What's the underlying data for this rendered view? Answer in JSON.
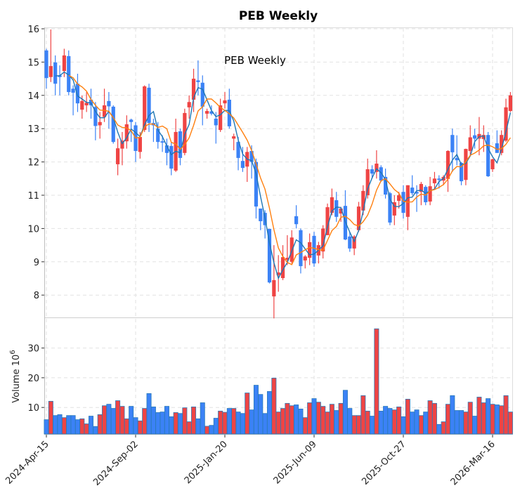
{
  "chart_data": {
    "type": "candlestick",
    "title": "PEB  Weekly",
    "inner_title": "PEB  Weekly",
    "price_axis": {
      "ylim": [
        7.4,
        16.05
      ],
      "ticks": [
        8,
        9,
        10,
        11,
        12,
        13,
        14,
        15,
        16
      ]
    },
    "volume_axis": {
      "ylabel": "Volume",
      "ylabel_unit": "10",
      "ylabel_exp": "6",
      "ylim": [
        1.2,
        38
      ],
      "ticks": [
        10,
        20,
        30
      ]
    },
    "x_ticks": [
      {
        "index": 0,
        "label": "2024-Apr-15"
      },
      {
        "index": 20,
        "label": "2024-Sep-02"
      },
      {
        "index": 40,
        "label": "2025-Jan-20"
      },
      {
        "index": 60,
        "label": "2025-Jun-09"
      },
      {
        "index": 80,
        "label": "2025-Oct-27"
      },
      {
        "index": 100,
        "label": "2026-Mar-16"
      }
    ],
    "grid": true,
    "colors": {
      "up": "#ef4444",
      "down": "#3b82f6",
      "ma_short": "#1f77b4",
      "ma_long": "#ff7f0e",
      "bar_edge": "#2b7bb9"
    },
    "ma_periods": [
      3,
      6
    ],
    "ohlc": [
      [
        15.35,
        15.4,
        14.2,
        14.52
      ],
      [
        14.55,
        15.98,
        14.4,
        14.88
      ],
      [
        14.99,
        15.2,
        14.0,
        14.35
      ],
      [
        14.6,
        14.9,
        14.0,
        14.55
      ],
      [
        14.73,
        15.4,
        14.55,
        15.2
      ],
      [
        15.18,
        15.35,
        14.0,
        14.1
      ],
      [
        14.2,
        14.3,
        13.4,
        14.08
      ],
      [
        14.35,
        14.65,
        13.5,
        13.76
      ],
      [
        13.57,
        14.0,
        13.3,
        13.83
      ],
      [
        13.7,
        14.1,
        13.5,
        13.78
      ],
      [
        13.87,
        14.2,
        13.3,
        13.7
      ],
      [
        13.65,
        13.8,
        12.65,
        13.08
      ],
      [
        13.1,
        13.5,
        12.7,
        13.2
      ],
      [
        13.35,
        14.2,
        13.2,
        13.7
      ],
      [
        13.83,
        14.1,
        13.0,
        13.67
      ],
      [
        13.66,
        13.7,
        12.55,
        12.6
      ],
      [
        11.93,
        12.7,
        11.6,
        12.41
      ],
      [
        12.4,
        12.9,
        11.9,
        12.64
      ],
      [
        12.62,
        13.4,
        12.4,
        13.13
      ],
      [
        13.27,
        13.3,
        12.6,
        13.2
      ],
      [
        13.1,
        13.2,
        12.0,
        12.33
      ],
      [
        12.3,
        12.9,
        12.1,
        12.75
      ],
      [
        12.96,
        14.3,
        12.9,
        14.27
      ],
      [
        14.23,
        14.35,
        12.9,
        13.17
      ],
      [
        13.17,
        13.3,
        12.6,
        13.1
      ],
      [
        13.0,
        13.2,
        12.4,
        12.6
      ],
      [
        12.62,
        12.8,
        12.3,
        12.58
      ],
      [
        12.5,
        12.7,
        11.9,
        12.27
      ],
      [
        12.48,
        12.6,
        11.6,
        11.8
      ],
      [
        11.74,
        13.3,
        11.7,
        12.9
      ],
      [
        12.92,
        13.0,
        11.9,
        12.12
      ],
      [
        12.27,
        13.6,
        12.2,
        13.47
      ],
      [
        13.64,
        14.0,
        13.3,
        13.8
      ],
      [
        13.87,
        14.8,
        13.5,
        14.5
      ],
      [
        14.45,
        15.05,
        14.0,
        14.4
      ],
      [
        14.38,
        14.6,
        13.1,
        13.66
      ],
      [
        13.45,
        13.6,
        13.3,
        13.53
      ],
      [
        13.52,
        13.7,
        13.4,
        13.45
      ],
      [
        13.3,
        13.5,
        12.55,
        13.1
      ],
      [
        12.96,
        13.9,
        12.9,
        13.7
      ],
      [
        13.76,
        14.1,
        13.6,
        13.85
      ],
      [
        13.87,
        14.2,
        13.0,
        13.07
      ],
      [
        12.7,
        12.85,
        12.35,
        12.77
      ],
      [
        12.6,
        12.75,
        11.75,
        12.12
      ],
      [
        12.03,
        12.45,
        11.7,
        11.82
      ],
      [
        11.86,
        12.45,
        11.4,
        12.3
      ],
      [
        12.33,
        12.5,
        11.5,
        12.0
      ],
      [
        12.0,
        12.1,
        10.3,
        10.66
      ],
      [
        10.6,
        10.6,
        9.95,
        10.22
      ],
      [
        10.47,
        10.55,
        9.7,
        10.1
      ],
      [
        9.99,
        9.99,
        8.35,
        8.38
      ],
      [
        7.96,
        9.5,
        7.3,
        8.45
      ],
      [
        8.6,
        9.2,
        8.1,
        8.68
      ],
      [
        8.51,
        9.5,
        8.45,
        9.14
      ],
      [
        9.06,
        9.8,
        8.9,
        9.12
      ],
      [
        9.0,
        9.95,
        8.95,
        9.73
      ],
      [
        10.37,
        10.7,
        10.0,
        10.13
      ],
      [
        9.95,
        10.0,
        8.65,
        8.87
      ],
      [
        9.04,
        9.2,
        8.8,
        9.16
      ],
      [
        9.12,
        9.85,
        8.9,
        9.59
      ],
      [
        9.78,
        9.9,
        8.85,
        8.95
      ],
      [
        9.19,
        9.6,
        8.95,
        9.5
      ],
      [
        9.31,
        10.1,
        9.1,
        10.0
      ],
      [
        9.8,
        10.75,
        9.8,
        10.64
      ],
      [
        10.47,
        11.2,
        10.4,
        10.94
      ],
      [
        10.85,
        11.1,
        10.2,
        10.35
      ],
      [
        10.45,
        10.65,
        10.2,
        10.6
      ],
      [
        10.68,
        11.15,
        9.65,
        9.67
      ],
      [
        9.76,
        9.9,
        9.3,
        9.4
      ],
      [
        9.4,
        9.8,
        9.2,
        9.76
      ],
      [
        9.95,
        10.8,
        9.9,
        10.66
      ],
      [
        10.54,
        11.3,
        10.4,
        11.13
      ],
      [
        11.0,
        12.1,
        10.9,
        11.78
      ],
      [
        11.78,
        11.9,
        11.5,
        11.65
      ],
      [
        11.7,
        12.35,
        11.5,
        11.95
      ],
      [
        11.84,
        11.9,
        11.4,
        11.44
      ],
      [
        11.55,
        11.8,
        10.9,
        11.02
      ],
      [
        11.06,
        11.1,
        10.1,
        10.18
      ],
      [
        10.39,
        11.0,
        10.1,
        10.79
      ],
      [
        10.83,
        11.1,
        10.6,
        11.0
      ],
      [
        11.1,
        11.3,
        10.3,
        10.47
      ],
      [
        10.35,
        11.3,
        9.95,
        11.3
      ],
      [
        11.23,
        11.6,
        11.0,
        11.06
      ],
      [
        11.1,
        11.3,
        10.5,
        11.05
      ],
      [
        11.1,
        11.4,
        10.7,
        11.34
      ],
      [
        11.25,
        11.3,
        10.7,
        10.79
      ],
      [
        10.81,
        11.55,
        10.7,
        11.27
      ],
      [
        11.36,
        11.7,
        11.2,
        11.5
      ],
      [
        11.5,
        11.6,
        11.2,
        11.46
      ],
      [
        11.44,
        11.6,
        11.3,
        11.55
      ],
      [
        11.49,
        12.35,
        11.1,
        12.33
      ],
      [
        12.81,
        13.0,
        11.7,
        12.29
      ],
      [
        12.12,
        12.8,
        11.9,
        12.05
      ],
      [
        11.97,
        12.0,
        11.3,
        11.42
      ],
      [
        11.46,
        12.4,
        11.3,
        12.39
      ],
      [
        12.33,
        13.1,
        12.2,
        12.74
      ],
      [
        12.8,
        13.0,
        12.4,
        12.7
      ],
      [
        12.7,
        13.35,
        12.2,
        12.84
      ],
      [
        12.69,
        13.1,
        12.3,
        12.81
      ],
      [
        12.81,
        12.9,
        11.55,
        11.57
      ],
      [
        11.78,
        12.1,
        11.7,
        12.08
      ],
      [
        12.56,
        12.95,
        12.3,
        12.27
      ],
      [
        12.27,
        12.95,
        12.2,
        12.81
      ],
      [
        12.64,
        13.9,
        12.6,
        13.64
      ],
      [
        13.53,
        14.1,
        13.5,
        14.0
      ]
    ],
    "volume": [
      6.0,
      12.2,
      7.4,
      7.7,
      6.7,
      7.4,
      7.4,
      6.0,
      6.3,
      4.6,
      7.2,
      3.7,
      7.7,
      10.7,
      11.2,
      9.8,
      12.4,
      10.5,
      6.3,
      10.5,
      6.7,
      5.6,
      9.8,
      14.8,
      10.3,
      8.4,
      8.6,
      10.5,
      7.0,
      8.4,
      8.1,
      10.0,
      5.3,
      10.3,
      6.3,
      11.7,
      3.8,
      4.1,
      6.5,
      8.9,
      8.5,
      9.8,
      9.8,
      8.6,
      8.1,
      15.0,
      9.3,
      17.6,
      14.5,
      8.1,
      15.5,
      20.0,
      8.6,
      9.8,
      11.5,
      10.7,
      11.0,
      9.6,
      6.7,
      11.7,
      13.1,
      11.9,
      10.5,
      8.6,
      11.2,
      9.1,
      11.5,
      15.9,
      9.8,
      7.4,
      7.4,
      14.1,
      8.9,
      7.2,
      36.6,
      8.9,
      10.5,
      9.8,
      9.3,
      10.3,
      7.0,
      12.9,
      8.6,
      9.3,
      7.4,
      8.6,
      12.4,
      11.5,
      4.4,
      5.3,
      11.2,
      14.1,
      9.1,
      9.1,
      8.6,
      11.9,
      7.2,
      13.6,
      11.7,
      13.1,
      11.2,
      11.0,
      10.7,
      14.1,
      8.6
    ]
  }
}
